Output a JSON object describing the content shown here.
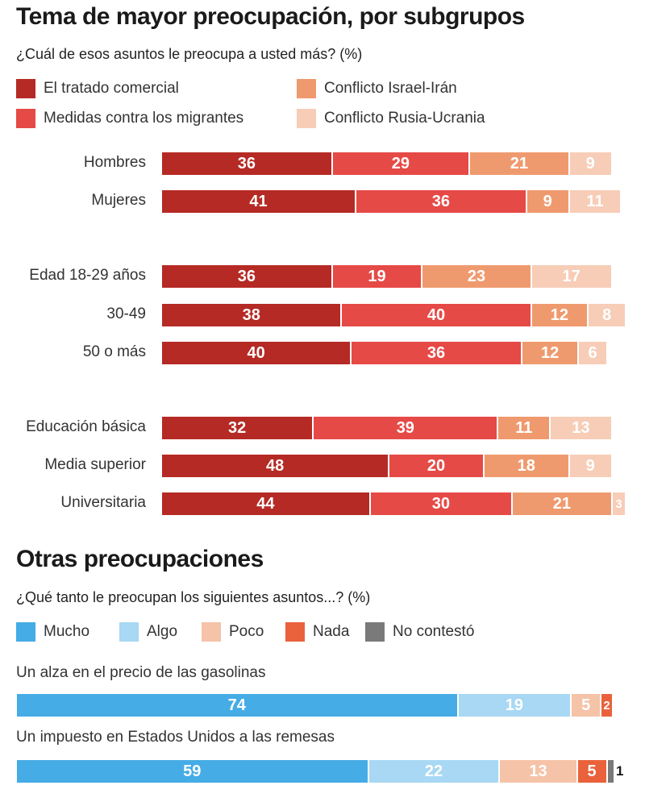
{
  "chart_data": [
    {
      "type": "bar",
      "orientation": "horizontal",
      "stacked": true,
      "title": "Tema de mayor preocupación, por subgrupos",
      "subtitle": "¿Cuál de esos asuntos le preocupa a usted más? (%)",
      "legend": [
        {
          "name": "El tratado comercial",
          "color": "#b52a24"
        },
        {
          "name": "Medidas contra los migrantes",
          "color": "#e64a46"
        },
        {
          "name": "Conflicto Israel-Irán",
          "color": "#ef9a6e"
        },
        {
          "name": "Conflicto Rusia-Ucrania",
          "color": "#f7cdb7"
        }
      ],
      "rows": [
        {
          "label": "Hombres",
          "values": [
            36,
            29,
            21,
            9
          ]
        },
        {
          "label": "Mujeres",
          "values": [
            41,
            36,
            9,
            11
          ]
        },
        {
          "label": "Edad 18-29 años",
          "values": [
            36,
            19,
            23,
            17
          ]
        },
        {
          "label": "30-49",
          "values": [
            38,
            40,
            12,
            8
          ]
        },
        {
          "label": "50 o más",
          "values": [
            40,
            36,
            12,
            6
          ]
        },
        {
          "label": "Educación básica",
          "values": [
            32,
            39,
            11,
            13
          ]
        },
        {
          "label": "Media superior",
          "values": [
            48,
            20,
            18,
            9
          ]
        },
        {
          "label": "Universitaria",
          "values": [
            44,
            30,
            21,
            3
          ]
        }
      ]
    },
    {
      "type": "bar",
      "orientation": "horizontal",
      "stacked": true,
      "title": "Otras preocupaciones",
      "subtitle": "¿Qué tanto le preocupan los siguientes asuntos...? (%)",
      "legend": [
        {
          "name": "Mucho",
          "color": "#45ace6"
        },
        {
          "name": "Algo",
          "color": "#a8d8f3"
        },
        {
          "name": "Poco",
          "color": "#f5c3a8"
        },
        {
          "name": "Nada",
          "color": "#e9623b"
        },
        {
          "name": "No contestó",
          "color": "#7a7a7a"
        }
      ],
      "rows": [
        {
          "label": "Un alza en el precio de las gasolinas",
          "values": [
            74,
            19,
            5,
            2,
            0
          ]
        },
        {
          "label": "Un impuesto en Estados Unidos a las remesas",
          "values": [
            59,
            22,
            13,
            5,
            1
          ]
        }
      ]
    }
  ]
}
